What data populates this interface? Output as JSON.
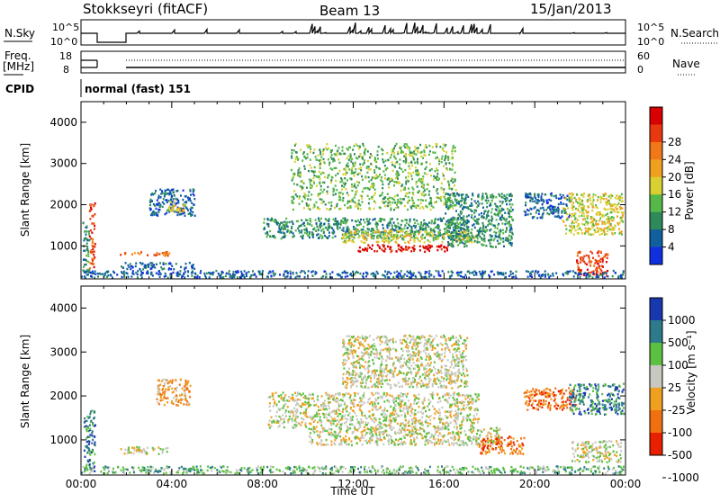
{
  "header": {
    "station": "Stokkseyri (fitACF)",
    "beam": "Beam 13",
    "date": "15/Jan/2013"
  },
  "strips": {
    "nsky_label": "N.Sky",
    "nsky_ticks": [
      "10^5",
      "10^0"
    ],
    "nsearch_label": "N.Search",
    "nsearch_ticks": [
      "10^5",
      "10^0"
    ],
    "freq_label_1": "Freq.",
    "freq_label_2": "[MHz]",
    "freq_ticks": [
      "18",
      "8"
    ],
    "nave_label": "Nave",
    "nave_ticks": [
      "60",
      "0"
    ],
    "cpid_label": "CPID",
    "cpid_text": "normal (fast) 151"
  },
  "chart_data": [
    {
      "type": "heatmap",
      "panel": "power",
      "ylabel": "Slant Range [km]",
      "yticks": [
        "1000",
        "2000",
        "3000",
        "4000"
      ],
      "ylim": [
        200,
        4500
      ],
      "xlim": [
        0,
        24
      ],
      "colorbar_label": "Power [dB]",
      "colorbar_ticks": [
        "4",
        "8",
        "12",
        "16",
        "20",
        "24",
        "28"
      ],
      "colors": [
        "#1030e0",
        "#1060a0",
        "#2e8a5a",
        "#56b848",
        "#d8d030",
        "#f0a020",
        "#f07818",
        "#e83810",
        "#d80000"
      ],
      "regions": [
        {
          "t0": 0.05,
          "t1": 0.35,
          "r0": 300,
          "r1": 1600,
          "level": 2
        },
        {
          "t0": 0.35,
          "t1": 0.6,
          "r0": 400,
          "r1": 2100,
          "level": 7
        },
        {
          "t0": 1.7,
          "t1": 5.0,
          "r0": 450,
          "r1": 620,
          "level": 1
        },
        {
          "t0": 1.7,
          "t1": 3.9,
          "r0": 780,
          "r1": 880,
          "level": 6
        },
        {
          "t0": 3.0,
          "t1": 5.0,
          "r0": 1750,
          "r1": 2400,
          "level": 1
        },
        {
          "t0": 3.7,
          "t1": 4.6,
          "r0": 1850,
          "r1": 2100,
          "level": 4
        },
        {
          "t0": 8.0,
          "t1": 17.0,
          "r0": 1200,
          "r1": 1700,
          "level": 2
        },
        {
          "t0": 9.2,
          "t1": 16.5,
          "r0": 1900,
          "r1": 3500,
          "level": 3
        },
        {
          "t0": 11.5,
          "t1": 17.5,
          "r0": 1100,
          "r1": 1400,
          "level": 4
        },
        {
          "t0": 12.0,
          "t1": 16.2,
          "r0": 880,
          "r1": 1050,
          "level": 8
        },
        {
          "t0": 16.0,
          "t1": 19.0,
          "r0": 1000,
          "r1": 2300,
          "level": 2
        },
        {
          "t0": 19.5,
          "t1": 21.5,
          "r0": 1700,
          "r1": 2300,
          "level": 1
        },
        {
          "t0": 21.2,
          "t1": 23.9,
          "r0": 1300,
          "r1": 2300,
          "level": 4
        },
        {
          "t0": 21.8,
          "t1": 23.2,
          "r0": 300,
          "r1": 900,
          "level": 7
        },
        {
          "t0": 0.0,
          "t1": 23.9,
          "r0": 250,
          "r1": 420,
          "level": 1
        }
      ]
    },
    {
      "type": "heatmap",
      "panel": "velocity",
      "ylabel": "Slant Range [km]",
      "yticks": [
        "1000",
        "2000",
        "3000",
        "4000"
      ],
      "ylim": [
        200,
        4500
      ],
      "xlabel": "Time UT",
      "xticks": [
        "00:00",
        "04:00",
        "08:00",
        "12:00",
        "16:00",
        "20:00",
        "00:00"
      ],
      "xlim": [
        0,
        24
      ],
      "colorbar_label": "Velocity [m s⁻¹]",
      "colorbar_ticks": [
        "1000",
        "500",
        "100",
        "25",
        "-25",
        "-100",
        "-500",
        "-1000"
      ],
      "colors": [
        "#1838b0",
        "#2c7a8a",
        "#5cc040",
        "#c8c8c0",
        "#f0a020",
        "#f07010",
        "#e82000"
      ],
      "regions": [
        {
          "t0": 0.1,
          "t1": 0.6,
          "r0": 300,
          "r1": 1700,
          "level": 1
        },
        {
          "t0": 1.7,
          "t1": 3.8,
          "r0": 700,
          "r1": 860,
          "level": 3
        },
        {
          "t0": 3.3,
          "t1": 4.8,
          "r0": 1800,
          "r1": 2400,
          "level": 4
        },
        {
          "t0": 8.2,
          "t1": 17.5,
          "r0": 1300,
          "r1": 2100,
          "level": 3
        },
        {
          "t0": 10.0,
          "t1": 18.5,
          "r0": 900,
          "r1": 1300,
          "level": 3
        },
        {
          "t0": 11.5,
          "t1": 17.0,
          "r0": 2200,
          "r1": 3400,
          "level": 3
        },
        {
          "t0": 17.5,
          "t1": 19.5,
          "r0": 700,
          "r1": 1100,
          "level": 5
        },
        {
          "t0": 19.5,
          "t1": 21.8,
          "r0": 1700,
          "r1": 2200,
          "level": 5
        },
        {
          "t0": 21.5,
          "t1": 23.9,
          "r0": 1600,
          "r1": 2300,
          "level": 1
        },
        {
          "t0": 21.6,
          "t1": 23.8,
          "r0": 500,
          "r1": 1000,
          "level": 3
        },
        {
          "t0": 0.0,
          "t1": 23.9,
          "r0": 250,
          "r1": 420,
          "level": 2
        }
      ]
    }
  ]
}
